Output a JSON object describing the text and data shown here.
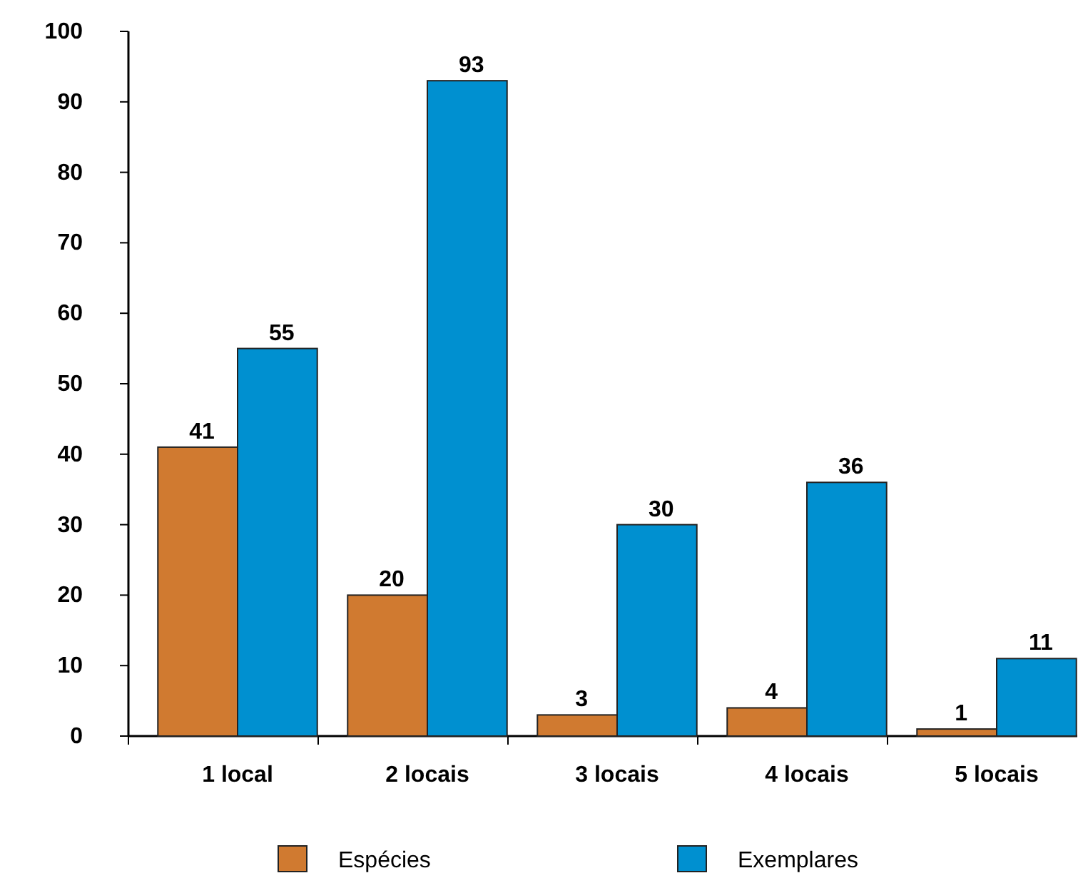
{
  "chart_data": {
    "type": "bar",
    "categories": [
      "1 local",
      "2 locais",
      "3 locais",
      "4 locais",
      "5 locais"
    ],
    "series": [
      {
        "name": "Espécies",
        "color": "#d07a30",
        "values": [
          41,
          20,
          3,
          4,
          1
        ]
      },
      {
        "name": "Exemplares",
        "color": "#0090d0",
        "values": [
          55,
          93,
          30,
          36,
          11
        ]
      }
    ],
    "ylim": [
      0,
      100
    ],
    "yticks": [
      0,
      10,
      20,
      30,
      40,
      50,
      60,
      70,
      80,
      90,
      100
    ],
    "data_labels": true,
    "legend": "bottom",
    "grid": false
  }
}
